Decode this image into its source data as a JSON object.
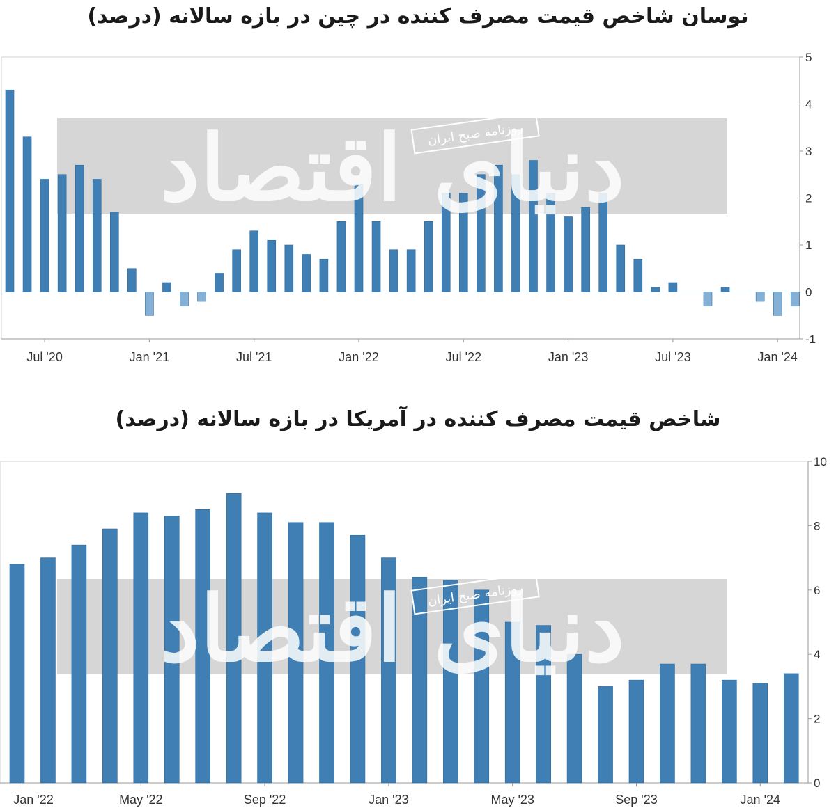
{
  "chart_data": [
    {
      "type": "bar",
      "title": "نوسان شاخص قیمت مصرف کننده در چین در بازه سالانه (درصد)",
      "x_tick_labels": [
        "Jul '20",
        "Jan '21",
        "Jul '21",
        "Jan '22",
        "Jul '22",
        "Jan '23",
        "Jul '23",
        "Jan '24"
      ],
      "y_tick_labels": [
        "5",
        "4",
        "3",
        "2",
        "1",
        "0",
        "-1"
      ],
      "ylim": [
        -1,
        5
      ],
      "values": [
        4.3,
        3.3,
        2.4,
        2.5,
        2.7,
        2.4,
        1.7,
        0.5,
        -0.5,
        0.2,
        -0.3,
        -0.2,
        0.4,
        0.9,
        1.3,
        1.1,
        1.0,
        0.8,
        0.7,
        1.5,
        2.3,
        1.5,
        0.9,
        0.9,
        1.5,
        2.1,
        2.1,
        2.5,
        2.7,
        2.5,
        2.8,
        2.1,
        1.6,
        1.8,
        2.1,
        1.0,
        0.7,
        0.1,
        0.2,
        0.0,
        -0.3,
        0.1,
        0.0,
        -0.2,
        -0.5,
        -0.3
      ],
      "bar_color": "#3f7fb4",
      "negative_bar_color": "#86b1d6",
      "grid": false,
      "y_axis_side": "right"
    },
    {
      "type": "bar",
      "title": "شاخص قیمت مصرف کننده در آمریکا در بازه سالانه (درصد)",
      "x_tick_labels": [
        "Jan '22",
        "May '22",
        "Sep '22",
        "Jan '23",
        "May '23",
        "Sep '23",
        "Jan '24"
      ],
      "y_tick_labels": [
        "10",
        "8",
        "6",
        "4",
        "2",
        "0"
      ],
      "ylim": [
        0,
        10
      ],
      "values": [
        6.8,
        7.0,
        7.4,
        7.9,
        8.4,
        8.3,
        8.5,
        9.0,
        8.4,
        8.1,
        8.1,
        7.7,
        7.0,
        6.4,
        6.3,
        6.0,
        5.0,
        4.9,
        4.0,
        3.0,
        3.2,
        3.7,
        3.7,
        3.2,
        3.1,
        3.4
      ],
      "bar_color": "#3f7fb4",
      "grid": false,
      "y_axis_side": "right"
    }
  ],
  "watermark": {
    "logo_text": "دنیای اقتصاد",
    "sub_text": "روزنامه صبح ایران"
  }
}
